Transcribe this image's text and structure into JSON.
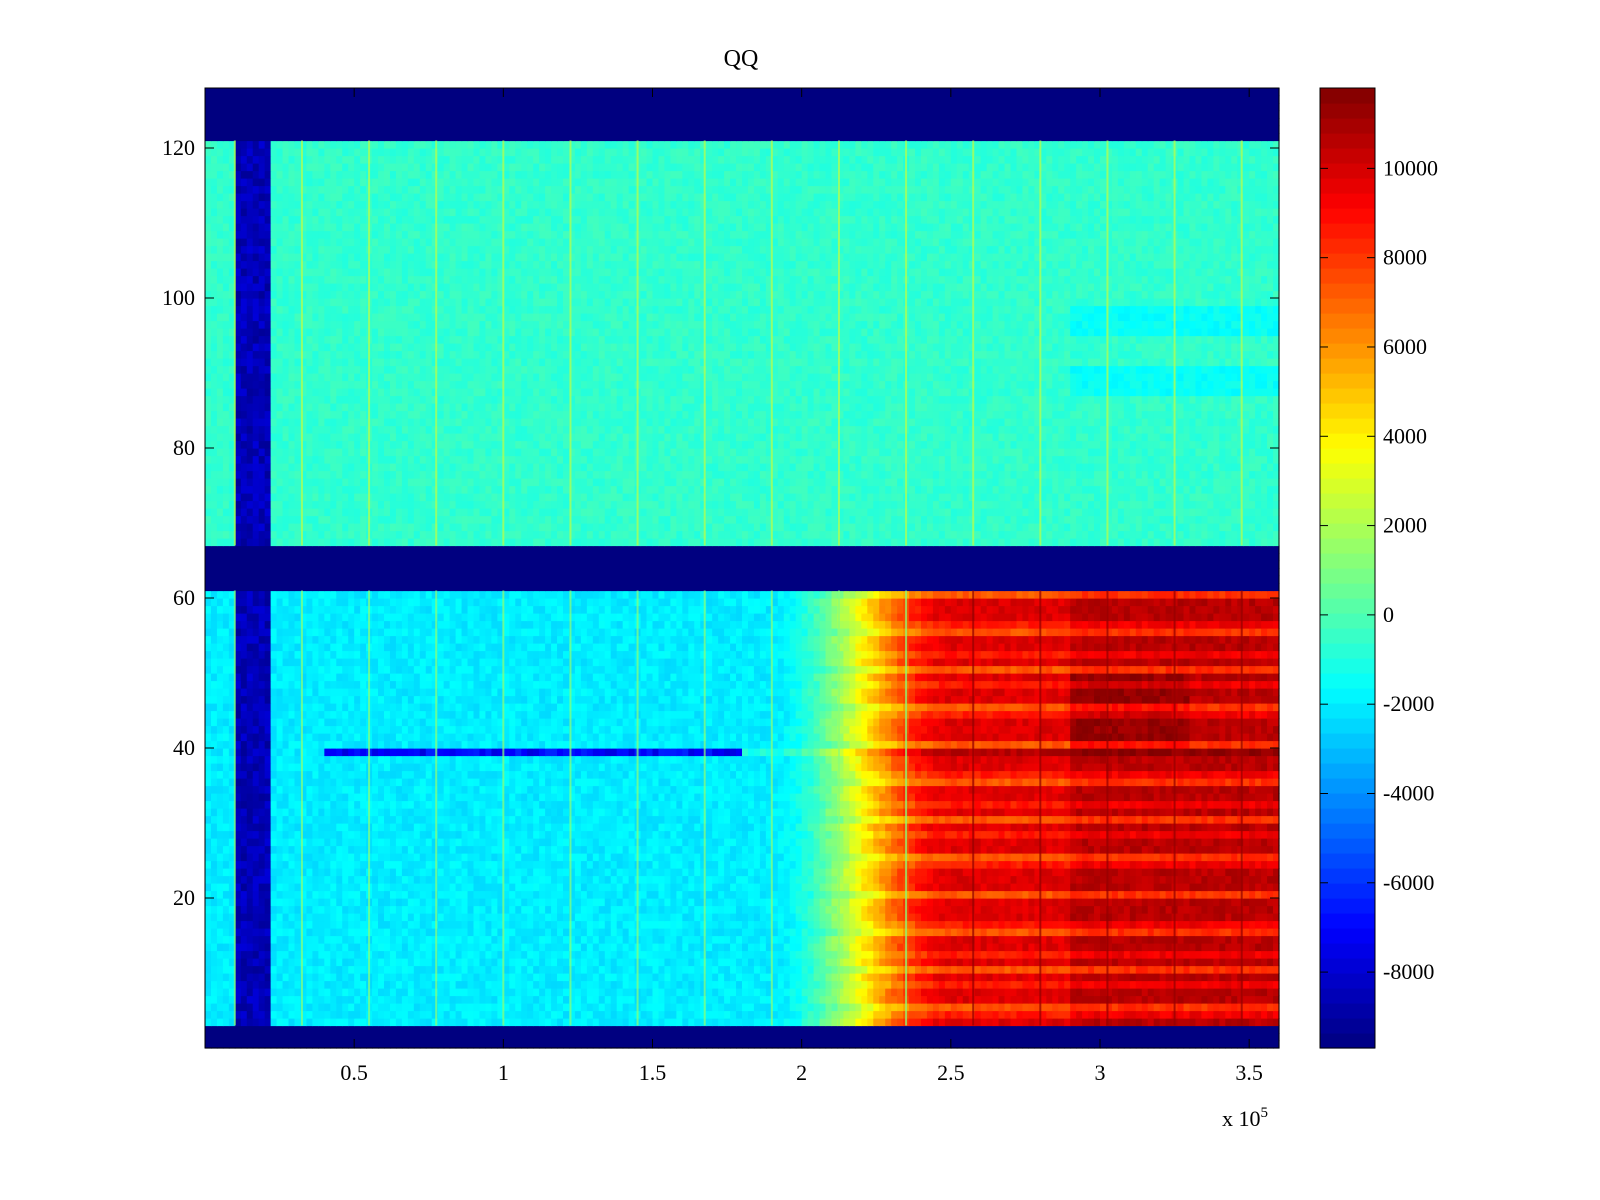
{
  "chart_data": {
    "type": "heatmap",
    "title": "QQ",
    "xlabel": "",
    "ylabel": "",
    "x_multiplier": "x 10",
    "x_multiplier_exp": "5",
    "xlim": [
      0,
      3.6
    ],
    "ylim": [
      0,
      128
    ],
    "xticks": [
      {
        "value": 0.5,
        "label": "0.5"
      },
      {
        "value": 1,
        "label": "1"
      },
      {
        "value": 1.5,
        "label": "1.5"
      },
      {
        "value": 2,
        "label": "2"
      },
      {
        "value": 2.5,
        "label": "2.5"
      },
      {
        "value": 3,
        "label": "3"
      },
      {
        "value": 3.5,
        "label": "3.5"
      }
    ],
    "yticks": [
      {
        "value": 20,
        "label": "20"
      },
      {
        "value": 40,
        "label": "40"
      },
      {
        "value": 60,
        "label": "60"
      },
      {
        "value": 80,
        "label": "80"
      },
      {
        "value": 100,
        "label": "100"
      },
      {
        "value": 120,
        "label": "120"
      }
    ],
    "colorbar": {
      "colormap": "jet",
      "clim": [
        -9700,
        11800
      ],
      "ticks": [
        {
          "value": -8000,
          "label": "-8000"
        },
        {
          "value": -6000,
          "label": "-6000"
        },
        {
          "value": -4000,
          "label": "-4000"
        },
        {
          "value": -2000,
          "label": "-2000"
        },
        {
          "value": 0,
          "label": "0"
        },
        {
          "value": 2000,
          "label": "2000"
        },
        {
          "value": 4000,
          "label": "4000"
        },
        {
          "value": 6000,
          "label": "6000"
        },
        {
          "value": 8000,
          "label": "8000"
        },
        {
          "value": 10000,
          "label": "10000"
        }
      ]
    },
    "bands": [
      {
        "y_range": [
          0,
          3
        ],
        "value": -9700
      },
      {
        "y_range": [
          61,
          67
        ],
        "value": -9700
      },
      {
        "y_range": [
          121,
          128
        ],
        "value": -9700
      }
    ],
    "regions": [
      {
        "y_range": [
          67,
          121
        ],
        "baseline": -600,
        "pattern": "near-uniform with narrow vertical streaks"
      },
      {
        "y_range": [
          3,
          61
        ],
        "baseline": -2000,
        "rise_start_x": 1.9,
        "rise_end_x": 2.5,
        "max_value": 11000
      }
    ],
    "low_column": {
      "x_range": [
        0.1,
        0.23
      ],
      "value": -8500
    },
    "highlight_row": {
      "y": 39,
      "value_low_x": -7000
    }
  }
}
